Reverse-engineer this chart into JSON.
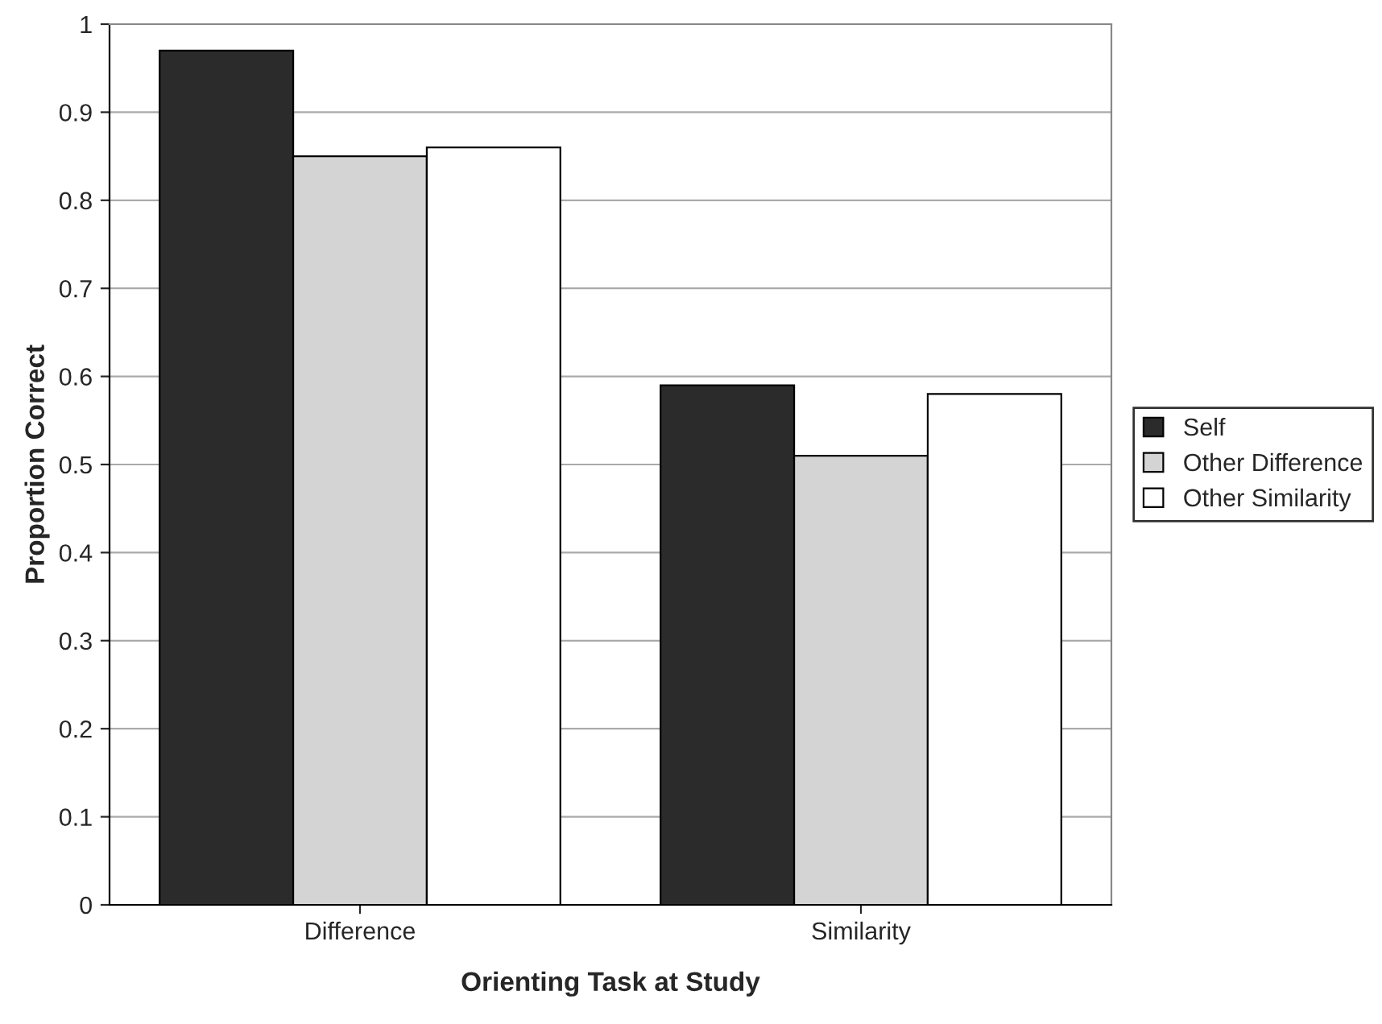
{
  "chart_data": {
    "type": "bar",
    "xlabel": "Orienting Task at Study",
    "ylabel": "Proportion Correct",
    "categories": [
      "Difference",
      "Similarity"
    ],
    "series": [
      {
        "name": "Self",
        "color": "#2b2b2b",
        "values": [
          0.97,
          0.59
        ]
      },
      {
        "name": "Other Difference",
        "color": "#d4d4d4",
        "values": [
          0.85,
          0.51
        ]
      },
      {
        "name": "Other Similarity",
        "color": "#ffffff",
        "values": [
          0.86,
          0.58
        ]
      }
    ],
    "ylim": [
      0,
      1
    ],
    "yticks": [
      0,
      0.1,
      0.2,
      0.3,
      0.4,
      0.5,
      0.6,
      0.7,
      0.8,
      0.9,
      1
    ],
    "grid": "y",
    "legend": "right"
  }
}
